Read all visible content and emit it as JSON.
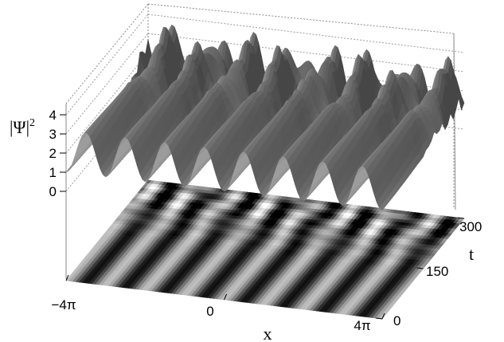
{
  "chart_data": {
    "type": "surface",
    "title": "",
    "zlabel_base": "|Ψ|",
    "zlabel_exp": "2",
    "xlabel": "x",
    "ylabel": "t",
    "x_ticks": [
      "−4π",
      "0",
      "4π"
    ],
    "t_ticks": [
      "0",
      "150",
      "300"
    ],
    "z_ticks": [
      "0",
      "1",
      "2",
      "3",
      "4"
    ],
    "x_range": [
      "-4π",
      "4π"
    ],
    "t_range": [
      0,
      300
    ],
    "z_range": [
      0,
      4
    ],
    "grid": true,
    "colors": {
      "surface": "#7a7a7a",
      "lines": "#000000",
      "grid": "#9a9a9a"
    },
    "description_series": [
      {
        "name": "",
        "note": ""
      }
    ],
    "density_projection": "grayscale stripes of |Ψ|^2 on the x–t plane",
    "periodic_peaks": 8
  }
}
